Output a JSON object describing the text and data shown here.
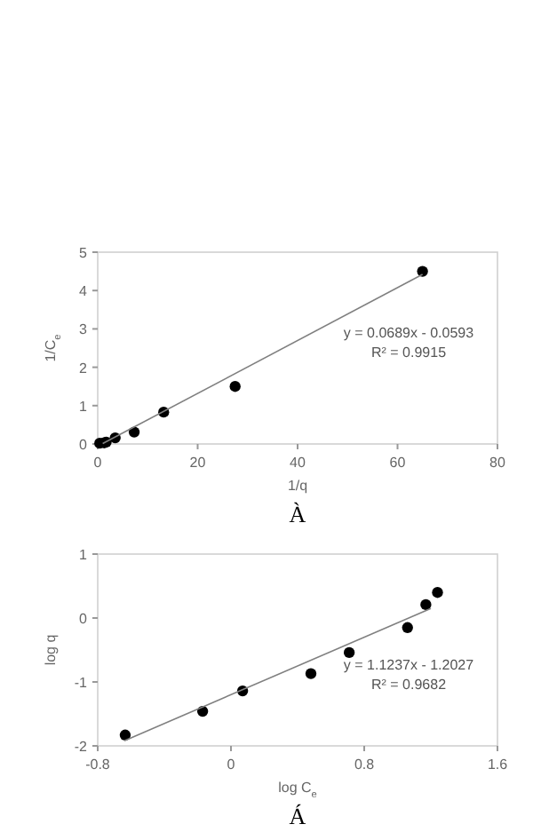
{
  "chart_data": [
    {
      "type": "scatter",
      "xlabel": "1/q",
      "ylabel": "1/C$_{e}$",
      "xlim": [
        0,
        80
      ],
      "ylim": [
        0,
        5
      ],
      "xticks": [
        0,
        20,
        40,
        60,
        80
      ],
      "yticks": [
        0,
        1,
        2,
        3,
        4,
        5
      ],
      "grid": false,
      "annotations": [
        "y = 0.0689x - 0.0593",
        "R² = 0.9915",
        "À"
      ],
      "series": [
        {
          "marker": "circle",
          "color": "#000000",
          "x": [
            0.4,
            1.3,
            1.7,
            3.5,
            7.3,
            13.2,
            27.5,
            65
          ],
          "values": [
            0.02,
            0.03,
            0.05,
            0.16,
            0.31,
            0.83,
            1.5,
            4.5
          ]
        },
        {
          "type": "line",
          "marker": "none",
          "color": "#808080",
          "x": [
            1,
            65
          ],
          "values": [
            0.01,
            4.42
          ]
        }
      ]
    },
    {
      "type": "scatter",
      "xlabel": "log C$_{e}$",
      "ylabel": "log q",
      "xlim": [
        -0.8,
        1.6
      ],
      "ylim": [
        -2,
        1
      ],
      "xticks": [
        -0.8,
        0,
        0.8,
        1.6
      ],
      "yticks": [
        -2,
        -1,
        0,
        1
      ],
      "grid": false,
      "annotations": [
        "y = 1.1237x - 1.2027",
        "R² = 0.9682",
        "Á"
      ],
      "series": [
        {
          "marker": "circle",
          "color": "#000000",
          "x": [
            -0.635,
            -0.17,
            0.07,
            0.48,
            0.71,
            1.06,
            1.17,
            1.24
          ],
          "values": [
            -1.83,
            -1.46,
            -1.14,
            -0.87,
            -0.54,
            -0.15,
            0.21,
            0.4
          ]
        },
        {
          "type": "line",
          "marker": "none",
          "color": "#808080",
          "x": [
            -0.64,
            1.2
          ],
          "values": [
            -1.92,
            0.15
          ]
        }
      ]
    }
  ]
}
